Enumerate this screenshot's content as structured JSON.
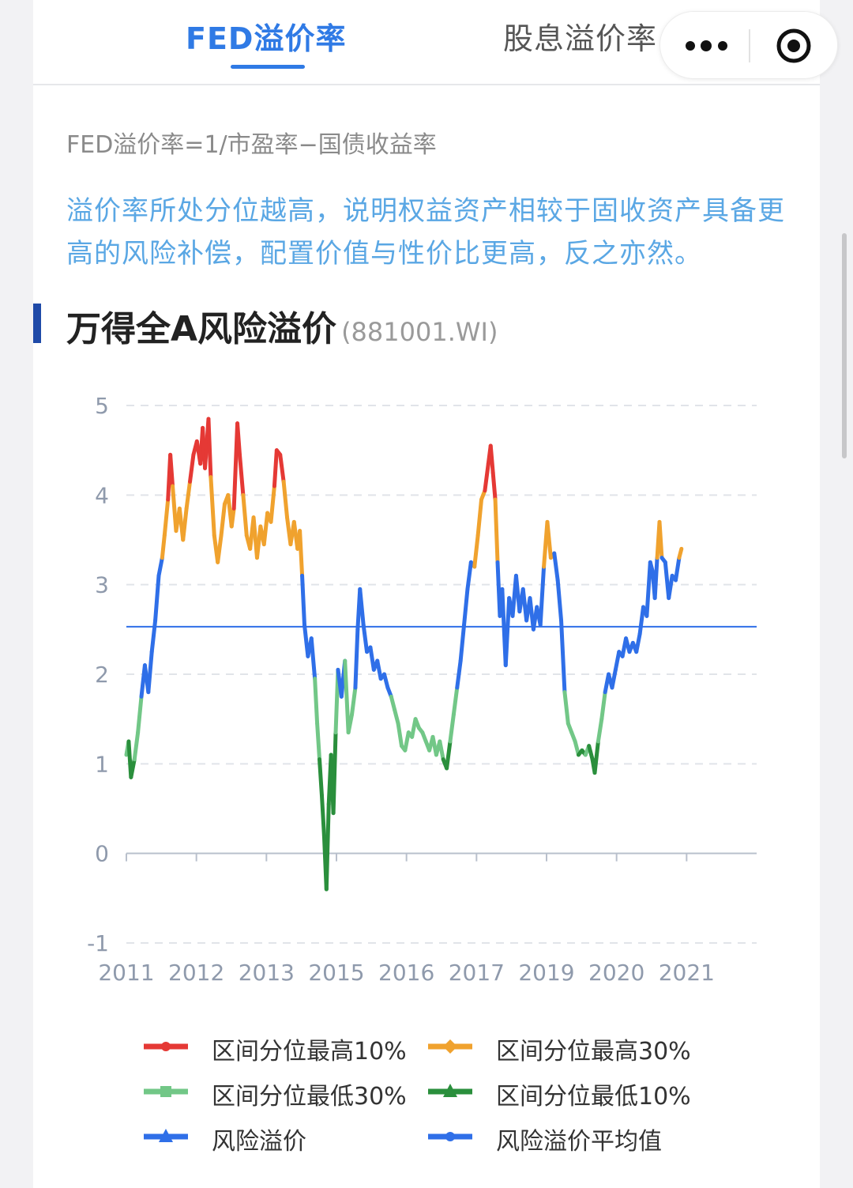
{
  "tabs": [
    {
      "label": "FED溢价率",
      "active": true
    },
    {
      "label": "股息溢价率",
      "active": false
    }
  ],
  "formula": "FED溢价率=1/市盈率−国债收益率",
  "description": "溢价率所处分位越高，说明权益资产相较于固收资产具备更高的风险补偿，配置价值与性价比更高，反之亦然。",
  "section": {
    "title": "万得全A风险溢价",
    "code": "(881001.WI)"
  },
  "colors": {
    "accent": "#2f7ae5",
    "top10": "#e53935",
    "top30": "#f0a22e",
    "low30": "#72c787",
    "low10": "#2a8f3c",
    "premium": "#2f6fe8",
    "avgline": "#2f6fe8"
  },
  "chart_data": {
    "type": "line",
    "title": "万得全A风险溢价",
    "xlabel": "",
    "ylabel": "",
    "ylim": [
      -1,
      5
    ],
    "yticks": [
      "5",
      "4",
      "3",
      "2",
      "1",
      "0",
      "-1"
    ],
    "xticks": [
      "2011",
      "2012",
      "2013",
      "2015",
      "2016",
      "2017",
      "2019",
      "2020",
      "2021"
    ],
    "x_range": [
      2011.0,
      2021.9
    ],
    "thresholds": {
      "top10": 4.05,
      "top30": 3.3,
      "low30": 1.8,
      "low10": 1.15
    },
    "average": 2.53,
    "legend": [
      {
        "name": "区间分位最高10%",
        "color": "#e53935",
        "marker": "circle"
      },
      {
        "name": "区间分位最高30%",
        "color": "#f0a22e",
        "marker": "diamond"
      },
      {
        "name": "区间分位最低30%",
        "color": "#72c787",
        "marker": "square"
      },
      {
        "name": "区间分位最低10%",
        "color": "#2a8f3c",
        "marker": "triangle"
      },
      {
        "name": "风险溢价",
        "color": "#2f6fe8",
        "marker": "triangle"
      },
      {
        "name": "风险溢价平均值",
        "color": "#2f6fe8",
        "marker": "circle"
      }
    ],
    "series": [
      {
        "name": "风险溢价",
        "points": [
          [
            2011.0,
            1.1
          ],
          [
            2011.04,
            1.25
          ],
          [
            2011.08,
            0.85
          ],
          [
            2011.14,
            1.05
          ],
          [
            2011.2,
            1.35
          ],
          [
            2011.26,
            1.75
          ],
          [
            2011.32,
            2.1
          ],
          [
            2011.38,
            1.8
          ],
          [
            2011.44,
            2.25
          ],
          [
            2011.5,
            2.6
          ],
          [
            2011.56,
            3.1
          ],
          [
            2011.62,
            3.3
          ],
          [
            2011.66,
            3.55
          ],
          [
            2011.72,
            3.95
          ],
          [
            2011.76,
            4.45
          ],
          [
            2011.8,
            4.1
          ],
          [
            2011.86,
            3.6
          ],
          [
            2011.92,
            3.85
          ],
          [
            2011.98,
            3.5
          ],
          [
            2012.04,
            3.85
          ],
          [
            2012.1,
            4.15
          ],
          [
            2012.16,
            4.45
          ],
          [
            2012.22,
            4.6
          ],
          [
            2012.28,
            4.35
          ],
          [
            2012.32,
            4.75
          ],
          [
            2012.36,
            4.3
          ],
          [
            2012.42,
            4.85
          ],
          [
            2012.46,
            4.2
          ],
          [
            2012.52,
            3.55
          ],
          [
            2012.58,
            3.25
          ],
          [
            2012.64,
            3.55
          ],
          [
            2012.7,
            3.9
          ],
          [
            2012.76,
            4.0
          ],
          [
            2012.82,
            3.65
          ],
          [
            2012.86,
            3.85
          ],
          [
            2012.92,
            4.8
          ],
          [
            2012.96,
            4.45
          ],
          [
            2013.02,
            4.0
          ],
          [
            2013.08,
            3.55
          ],
          [
            2013.14,
            3.4
          ],
          [
            2013.2,
            3.75
          ],
          [
            2013.26,
            3.3
          ],
          [
            2013.32,
            3.65
          ],
          [
            2013.38,
            3.45
          ],
          [
            2013.44,
            3.8
          ],
          [
            2013.5,
            3.7
          ],
          [
            2013.56,
            4.1
          ],
          [
            2013.6,
            4.5
          ],
          [
            2013.66,
            4.45
          ],
          [
            2013.72,
            4.15
          ],
          [
            2013.78,
            3.75
          ],
          [
            2013.84,
            3.45
          ],
          [
            2013.9,
            3.7
          ],
          [
            2013.96,
            3.4
          ],
          [
            2014.0,
            3.6
          ],
          [
            2014.04,
            3.1
          ],
          [
            2014.08,
            2.55
          ],
          [
            2014.14,
            2.2
          ],
          [
            2014.2,
            2.4
          ],
          [
            2014.26,
            1.95
          ],
          [
            2014.3,
            1.45
          ],
          [
            2014.34,
            1.05
          ],
          [
            2014.38,
            0.65
          ],
          [
            2014.42,
            0.2
          ],
          [
            2014.46,
            -0.4
          ],
          [
            2014.5,
            0.55
          ],
          [
            2014.54,
            1.1
          ],
          [
            2014.58,
            0.45
          ],
          [
            2014.62,
            1.35
          ],
          [
            2014.66,
            2.05
          ],
          [
            2014.72,
            1.75
          ],
          [
            2014.78,
            2.15
          ],
          [
            2014.84,
            1.35
          ],
          [
            2014.9,
            1.55
          ],
          [
            2014.96,
            1.85
          ],
          [
            2015.0,
            2.5
          ],
          [
            2015.04,
            2.95
          ],
          [
            2015.1,
            2.55
          ],
          [
            2015.16,
            2.25
          ],
          [
            2015.22,
            2.3
          ],
          [
            2015.28,
            2.05
          ],
          [
            2015.34,
            2.15
          ],
          [
            2015.4,
            1.95
          ],
          [
            2015.46,
            2.0
          ],
          [
            2015.52,
            1.85
          ],
          [
            2015.58,
            1.75
          ],
          [
            2015.64,
            1.6
          ],
          [
            2015.7,
            1.45
          ],
          [
            2015.76,
            1.2
          ],
          [
            2015.82,
            1.15
          ],
          [
            2015.88,
            1.35
          ],
          [
            2015.94,
            1.3
          ],
          [
            2016.0,
            1.5
          ],
          [
            2016.06,
            1.4
          ],
          [
            2016.12,
            1.35
          ],
          [
            2016.18,
            1.25
          ],
          [
            2016.24,
            1.15
          ],
          [
            2016.3,
            1.3
          ],
          [
            2016.36,
            1.1
          ],
          [
            2016.42,
            1.25
          ],
          [
            2016.48,
            1.05
          ],
          [
            2016.54,
            0.95
          ],
          [
            2016.6,
            1.25
          ],
          [
            2016.66,
            1.55
          ],
          [
            2016.72,
            1.85
          ],
          [
            2016.78,
            2.15
          ],
          [
            2016.84,
            2.55
          ],
          [
            2016.9,
            2.95
          ],
          [
            2016.96,
            3.25
          ],
          [
            2017.02,
            3.2
          ],
          [
            2017.08,
            3.55
          ],
          [
            2017.14,
            3.95
          ],
          [
            2017.2,
            4.05
          ],
          [
            2017.26,
            4.35
          ],
          [
            2017.3,
            4.55
          ],
          [
            2017.34,
            4.25
          ],
          [
            2017.38,
            3.95
          ],
          [
            2017.42,
            3.25
          ],
          [
            2017.46,
            2.65
          ],
          [
            2017.5,
            2.95
          ],
          [
            2017.56,
            2.1
          ],
          [
            2017.62,
            2.85
          ],
          [
            2017.68,
            2.65
          ],
          [
            2017.74,
            3.1
          ],
          [
            2017.8,
            2.7
          ],
          [
            2017.86,
            2.95
          ],
          [
            2017.92,
            2.6
          ],
          [
            2017.98,
            2.85
          ],
          [
            2018.04,
            2.5
          ],
          [
            2018.1,
            2.75
          ],
          [
            2018.16,
            2.55
          ],
          [
            2018.22,
            3.2
          ],
          [
            2018.28,
            3.7
          ],
          [
            2018.34,
            3.3
          ],
          [
            2018.4,
            3.35
          ],
          [
            2018.46,
            3.05
          ],
          [
            2018.52,
            2.6
          ],
          [
            2018.58,
            1.8
          ],
          [
            2018.64,
            1.45
          ],
          [
            2018.7,
            1.35
          ],
          [
            2018.76,
            1.25
          ],
          [
            2018.82,
            1.1
          ],
          [
            2018.88,
            1.15
          ],
          [
            2018.94,
            1.1
          ],
          [
            2019.0,
            1.2
          ],
          [
            2019.06,
            1.05
          ],
          [
            2019.1,
            0.9
          ],
          [
            2019.16,
            1.25
          ],
          [
            2019.22,
            1.5
          ],
          [
            2019.28,
            1.8
          ],
          [
            2019.34,
            2.0
          ],
          [
            2019.4,
            1.85
          ],
          [
            2019.46,
            2.05
          ],
          [
            2019.52,
            2.25
          ],
          [
            2019.58,
            2.2
          ],
          [
            2019.64,
            2.4
          ],
          [
            2019.7,
            2.25
          ],
          [
            2019.76,
            2.35
          ],
          [
            2019.82,
            2.25
          ],
          [
            2019.88,
            2.45
          ],
          [
            2019.94,
            2.75
          ],
          [
            2020.0,
            2.65
          ],
          [
            2020.06,
            3.25
          ],
          [
            2020.1,
            3.15
          ],
          [
            2020.14,
            2.85
          ],
          [
            2020.18,
            3.3
          ],
          [
            2020.22,
            3.7
          ],
          [
            2020.26,
            3.3
          ],
          [
            2020.32,
            3.25
          ],
          [
            2020.38,
            2.85
          ],
          [
            2020.44,
            3.1
          ],
          [
            2020.5,
            3.05
          ],
          [
            2020.56,
            3.3
          ],
          [
            2020.6,
            3.4
          ]
        ]
      }
    ]
  }
}
